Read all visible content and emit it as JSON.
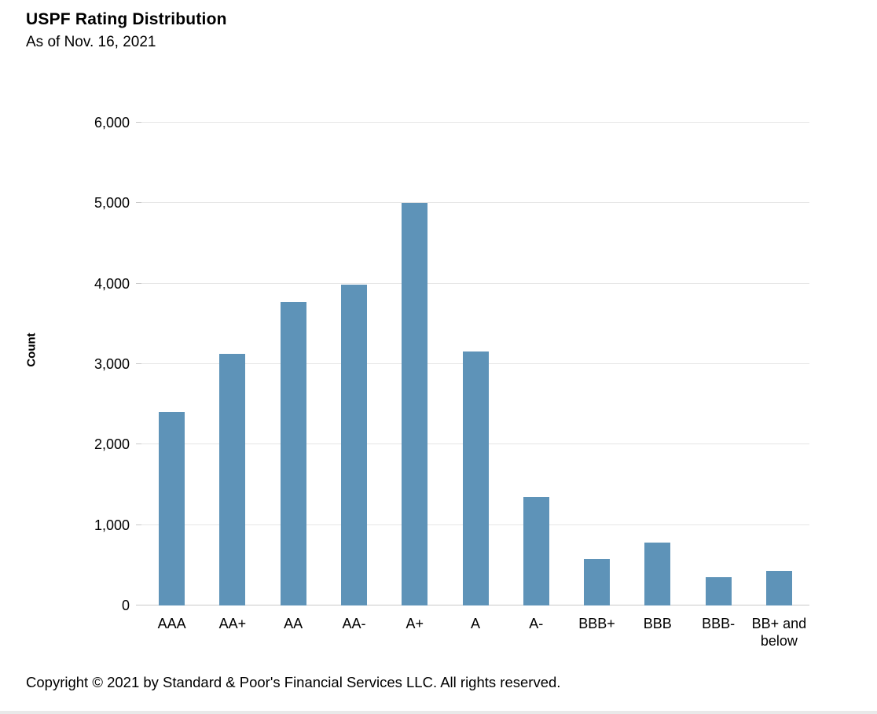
{
  "header": {
    "title": "USPF Rating Distribution",
    "subtitle": "As of Nov. 16, 2021"
  },
  "chart_data": {
    "type": "bar",
    "title": "USPF Rating Distribution",
    "subtitle": "As of Nov. 16, 2021",
    "categories": [
      "AAA",
      "AA+",
      "AA",
      "AA-",
      "A+",
      "A",
      "A-",
      "BBB+",
      "BBB",
      "BBB-",
      "BB+ and below"
    ],
    "values": [
      2400,
      3130,
      3770,
      3990,
      5000,
      3160,
      1350,
      580,
      780,
      350,
      430
    ],
    "xlabel": "",
    "ylabel": "Count",
    "ylim": [
      0,
      6000
    ],
    "yticks": [
      0,
      1000,
      2000,
      3000,
      4000,
      5000,
      6000
    ],
    "grid": true,
    "legend": "none",
    "bar_color": "#5e93b8"
  },
  "footer": {
    "copyright": "Copyright © 2021 by Standard & Poor's Financial Services LLC. All rights reserved."
  },
  "colors": {
    "bar": "#5e93b8",
    "gridline": "#e6e6e6",
    "axis": "#c9c9c9",
    "text": "#000000"
  }
}
